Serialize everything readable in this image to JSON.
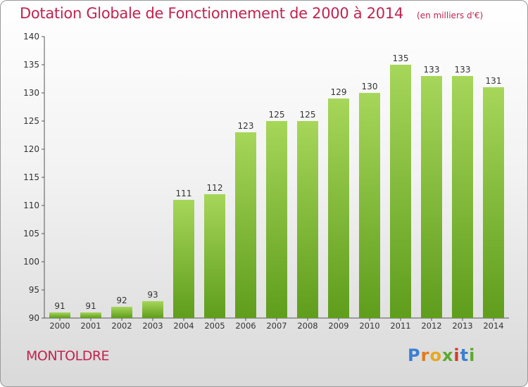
{
  "chart_data": {
    "type": "bar",
    "title": "Dotation Globale de Fonctionnement de 2000 à 2014",
    "unit_label": "(en milliers d'€)",
    "categories": [
      "2000",
      "2001",
      "2002",
      "2003",
      "2004",
      "2005",
      "2006",
      "2007",
      "2008",
      "2009",
      "2010",
      "2011",
      "2012",
      "2013",
      "2014"
    ],
    "values": [
      91,
      91,
      92,
      93,
      111,
      112,
      123,
      125,
      125,
      129,
      130,
      135,
      133,
      133,
      131
    ],
    "ylim": [
      90,
      140
    ],
    "yticks": [
      90,
      95,
      100,
      105,
      110,
      115,
      120,
      125,
      130,
      135,
      140
    ],
    "grid": false,
    "bar_color_light": "#a6d65a",
    "bar_color_dark": "#5f9d1c"
  },
  "footer": {
    "city": "MONTOLDRE",
    "logo": [
      "P",
      "r",
      "o",
      "x",
      "i",
      "t",
      "i"
    ]
  },
  "colors": {
    "title": "#c0244e",
    "axis": "#555555"
  }
}
